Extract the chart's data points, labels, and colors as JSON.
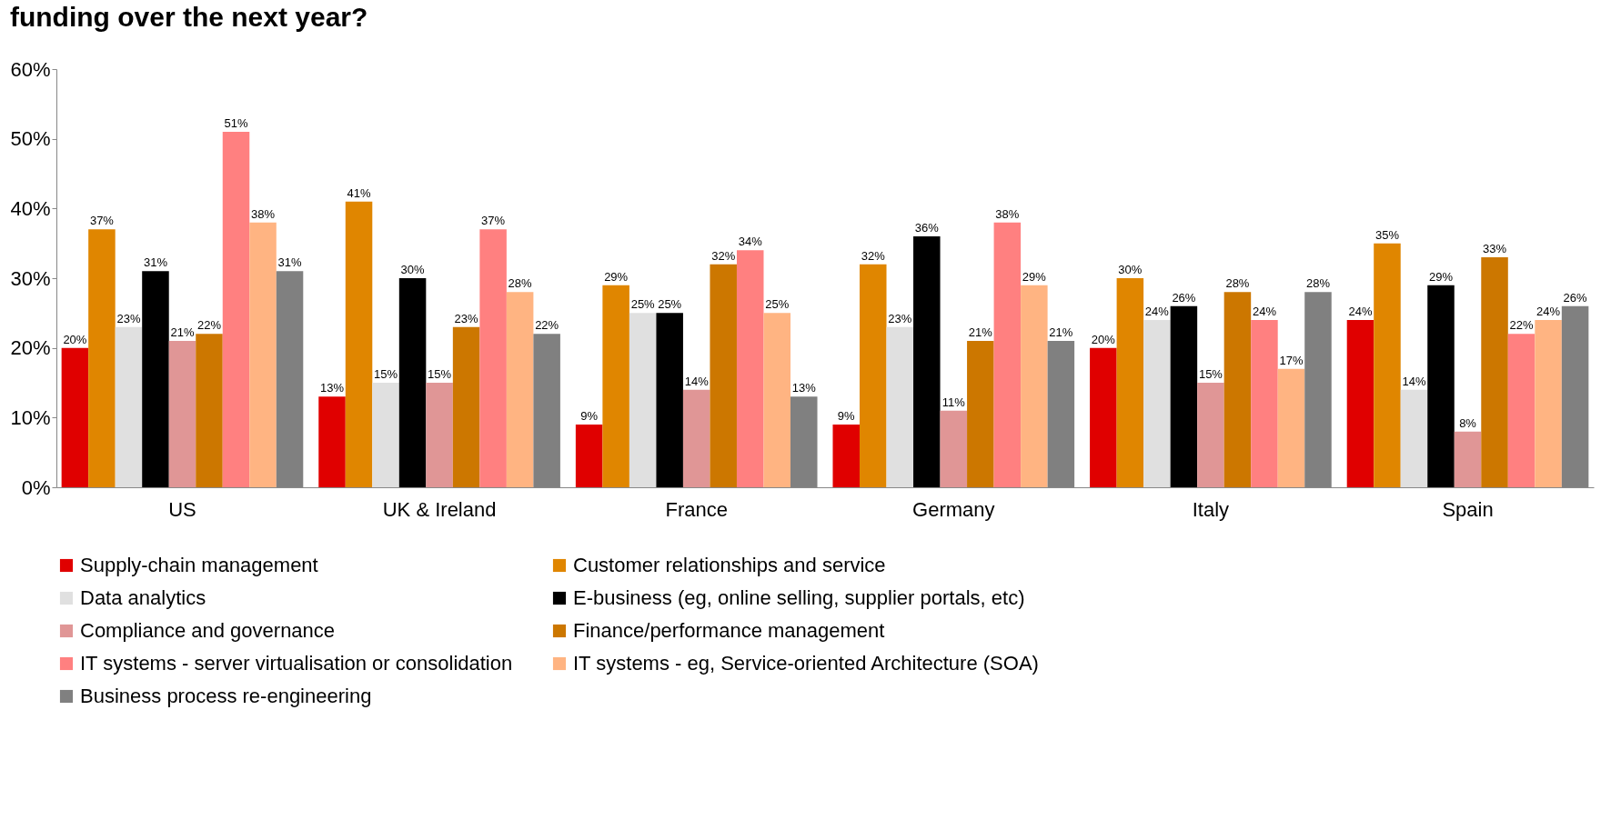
{
  "chart_data": {
    "type": "bar",
    "title": "funding over the next year?",
    "categories": [
      "US",
      "UK & Ireland",
      "France",
      "Germany",
      "Italy",
      "Spain"
    ],
    "series": [
      {
        "name": "Supply-chain management",
        "color": "#e00000",
        "values": [
          20,
          13,
          9,
          9,
          20,
          24
        ],
        "value_labels": [
          "20%",
          "13%",
          "9%",
          "9%",
          "20%",
          "24%"
        ]
      },
      {
        "name": "Customer relationships and service",
        "color": "#e08600",
        "values": [
          37,
          41,
          29,
          32,
          30,
          35
        ],
        "value_labels": [
          "37%",
          "41%",
          "29%",
          "32%",
          "30%",
          "35%"
        ]
      },
      {
        "name": "Data analytics",
        "color": "#e0e0e0",
        "values": [
          23,
          15,
          25,
          23,
          24,
          14
        ],
        "value_labels": [
          "23%",
          "15%",
          "25%",
          "23%",
          "24%",
          "14%"
        ]
      },
      {
        "name": "E-business (eg, online selling, supplier portals, etc)",
        "color": "#000000",
        "values": [
          31,
          30,
          25,
          36,
          26,
          29
        ],
        "value_labels": [
          "31%",
          "30%",
          "25%",
          "36%",
          "26%",
          "29%"
        ]
      },
      {
        "name": "Compliance and governance",
        "color": "#e09696",
        "values": [
          21,
          15,
          14,
          11,
          15,
          8
        ],
        "value_labels": [
          "21%",
          "15%",
          "14%",
          "11%",
          "15%",
          "8%"
        ]
      },
      {
        "name": "Finance/performance management",
        "color": "#cc7700",
        "values": [
          22,
          23,
          32,
          21,
          28,
          33
        ],
        "value_labels": [
          "22%",
          "23%",
          "32%",
          "21%",
          "28%",
          "33%"
        ]
      },
      {
        "name": "IT systems - server virtualisation or consolidation",
        "color": "#ff8080",
        "values": [
          51,
          37,
          34,
          38,
          24,
          22
        ],
        "value_labels": [
          "51%",
          "37%",
          "34%",
          "38%",
          "24%",
          "22%"
        ]
      },
      {
        "name": "IT systems - eg, Service-oriented Architecture (SOA)",
        "color": "#ffb482",
        "values": [
          38,
          28,
          25,
          29,
          17,
          24
        ],
        "value_labels": [
          "38%",
          "28%",
          "25%",
          "29%",
          "17%",
          "24%"
        ]
      },
      {
        "name": "Business process re-engineering",
        "color": "#808080",
        "values": [
          31,
          22,
          13,
          21,
          28,
          26
        ],
        "value_labels": [
          "31%",
          "22%",
          "13%",
          "21%",
          "28%",
          "26%"
        ]
      }
    ],
    "ylim": [
      0,
      60
    ],
    "yticks": [
      {
        "value": 0,
        "label": "0%"
      },
      {
        "value": 10,
        "label": "10%"
      },
      {
        "value": 20,
        "label": "20%"
      },
      {
        "value": 30,
        "label": "30%"
      },
      {
        "value": 40,
        "label": "40%"
      },
      {
        "value": 50,
        "label": "50%"
      },
      {
        "value": 60,
        "label": "60%"
      }
    ],
    "grid": false,
    "legend": "bottom"
  }
}
